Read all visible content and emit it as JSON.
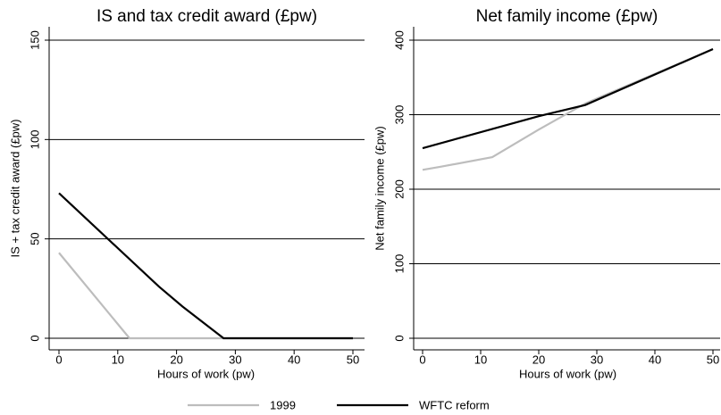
{
  "chart_data": [
    {
      "type": "line",
      "title": "IS and tax credit award (£pw)",
      "y_label": "IS + tax credit award (£pw)",
      "x_label": "Hours of work (pw)",
      "xlim": [
        0,
        50
      ],
      "xticks": [
        0,
        10,
        20,
        30,
        40,
        50
      ],
      "ylim": [
        0,
        150
      ],
      "yticks": [
        0,
        50,
        100,
        150
      ],
      "grid": true,
      "series": [
        {
          "name": "1999",
          "color": "#bdbdbd",
          "x": [
            0,
            12,
            50
          ],
          "values": [
            43,
            0,
            0
          ]
        },
        {
          "name": "WFTC reform",
          "color": "#000000",
          "x": [
            0,
            17,
            21,
            28,
            50
          ],
          "values": [
            73,
            26,
            16,
            0,
            0
          ]
        }
      ]
    },
    {
      "type": "line",
      "title": "Net family income (£pw)",
      "y_label": "Net family income (£pw)",
      "x_label": "Hours of work (pw)",
      "xlim": [
        0,
        50
      ],
      "xticks": [
        0,
        10,
        20,
        30,
        40,
        50
      ],
      "ylim": [
        0,
        400
      ],
      "yticks": [
        0,
        100,
        200,
        300,
        400
      ],
      "grid": true,
      "series": [
        {
          "name": "1999",
          "color": "#bdbdbd",
          "x": [
            0,
            3,
            12,
            20,
            28,
            50
          ],
          "values": [
            226,
            230,
            243,
            280,
            315,
            388
          ]
        },
        {
          "name": "WFTC reform",
          "color": "#000000",
          "x": [
            0,
            20,
            28,
            50
          ],
          "values": [
            255,
            298,
            313,
            388
          ]
        }
      ]
    }
  ]
}
